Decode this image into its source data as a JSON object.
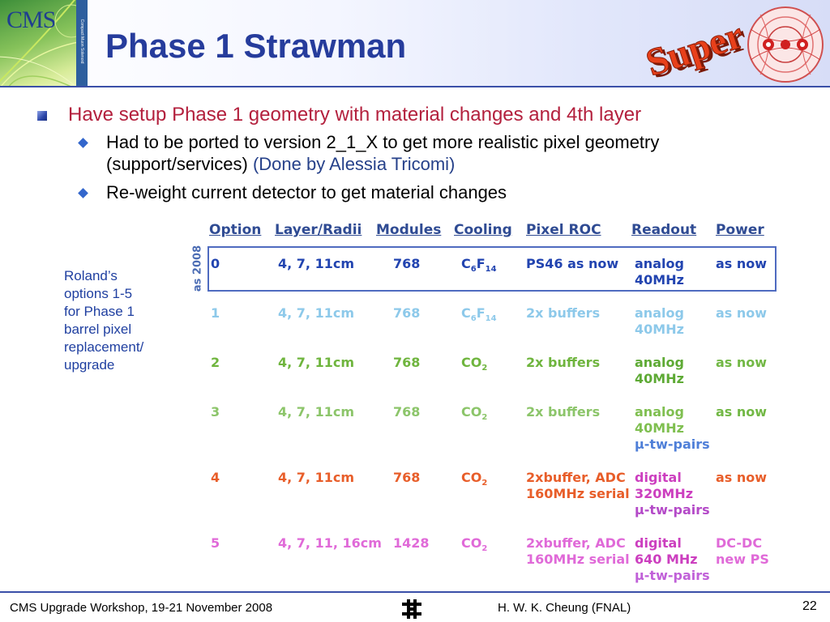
{
  "header": {
    "title": "Phase 1 Strawman",
    "logo_text": "CMS",
    "logo_side_text": "Compact Muon Solenoid",
    "badge_text": "Super"
  },
  "bullets": {
    "main": "Have setup Phase 1 geometry with material changes and 4th layer",
    "sub1_line1": "Had to be ported to version 2_1_X to get more realistic pixel geometry",
    "sub1_line2": "(support/services)",
    "sub1_credit": "(Done by Alessia Tricomi)",
    "sub2": "Re-weight current detector to get material changes"
  },
  "note": {
    "lines": [
      "Roland’s",
      "options 1-5",
      "for Phase 1",
      "barrel pixel",
      "replacement/",
      "upgrade"
    ]
  },
  "table": {
    "headers": [
      "Option",
      "Layer/Radii",
      "Modules",
      "Cooling",
      "Pixel ROC",
      "Readout",
      "Power"
    ],
    "as_label": "as 2008",
    "rows": [
      {
        "option": "0",
        "layer": "4, 7, 11cm",
        "modules": "768",
        "cooling_main": "C",
        "cooling_sub1": "6",
        "cooling_mid": "F",
        "cooling_sub2": "14",
        "roc1": "PS46 as now",
        "roc2": "",
        "read1": "analog",
        "read2": "40MHz",
        "read3": "",
        "power1": "as now",
        "power2": ""
      },
      {
        "option": "1",
        "layer": "4, 7, 11cm",
        "modules": "768",
        "cooling_main": "C",
        "cooling_sub1": "6",
        "cooling_mid": "F",
        "cooling_sub2": "14",
        "roc1": "2x buffers",
        "roc2": "",
        "read1": "analog",
        "read2": "40MHz",
        "read3": "",
        "power1": "as now",
        "power2": ""
      },
      {
        "option": "2",
        "layer": "4, 7, 11cm",
        "modules": "768",
        "cooling_main": "CO",
        "cooling_sub1": "2",
        "cooling_mid": "",
        "cooling_sub2": "",
        "roc1": "2x buffers",
        "roc2": "",
        "read1": "analog",
        "read2": "40MHz",
        "read3": "",
        "power1": "as now",
        "power2": ""
      },
      {
        "option": "3",
        "layer": "4, 7, 11cm",
        "modules": "768",
        "cooling_main": "CO",
        "cooling_sub1": "2",
        "cooling_mid": "",
        "cooling_sub2": "",
        "roc1": "2x buffers",
        "roc2": "",
        "read1": "analog",
        "read2": "40MHz",
        "read3": "μ-tw-pairs",
        "power1": "as now",
        "power2": ""
      },
      {
        "option": "4",
        "layer": "4, 7, 11cm",
        "modules": "768",
        "cooling_main": "CO",
        "cooling_sub1": "2",
        "cooling_mid": "",
        "cooling_sub2": "",
        "roc1": "2xbuffer, ADC",
        "roc2": "160MHz serial",
        "read1": "digital",
        "read2": "320MHz",
        "read3": "μ-tw-pairs",
        "power1": "as now",
        "power2": ""
      },
      {
        "option": "5",
        "layer": "4, 7, 11, 16cm",
        "modules": "1428",
        "cooling_main": "CO",
        "cooling_sub1": "2",
        "cooling_mid": "",
        "cooling_sub2": "",
        "roc1": "2xbuffer, ADC",
        "roc2": "160MHz serial",
        "read1": "digital",
        "read2": "640 MHz",
        "read3": "μ-tw-pairs",
        "power1": "DC-DC",
        "power2": "new PS"
      }
    ]
  },
  "footer": {
    "left": "CMS Upgrade Workshop, 19-21 November 2008",
    "author": "H. W. K. Cheung (FNAL)",
    "page_number": "22"
  }
}
